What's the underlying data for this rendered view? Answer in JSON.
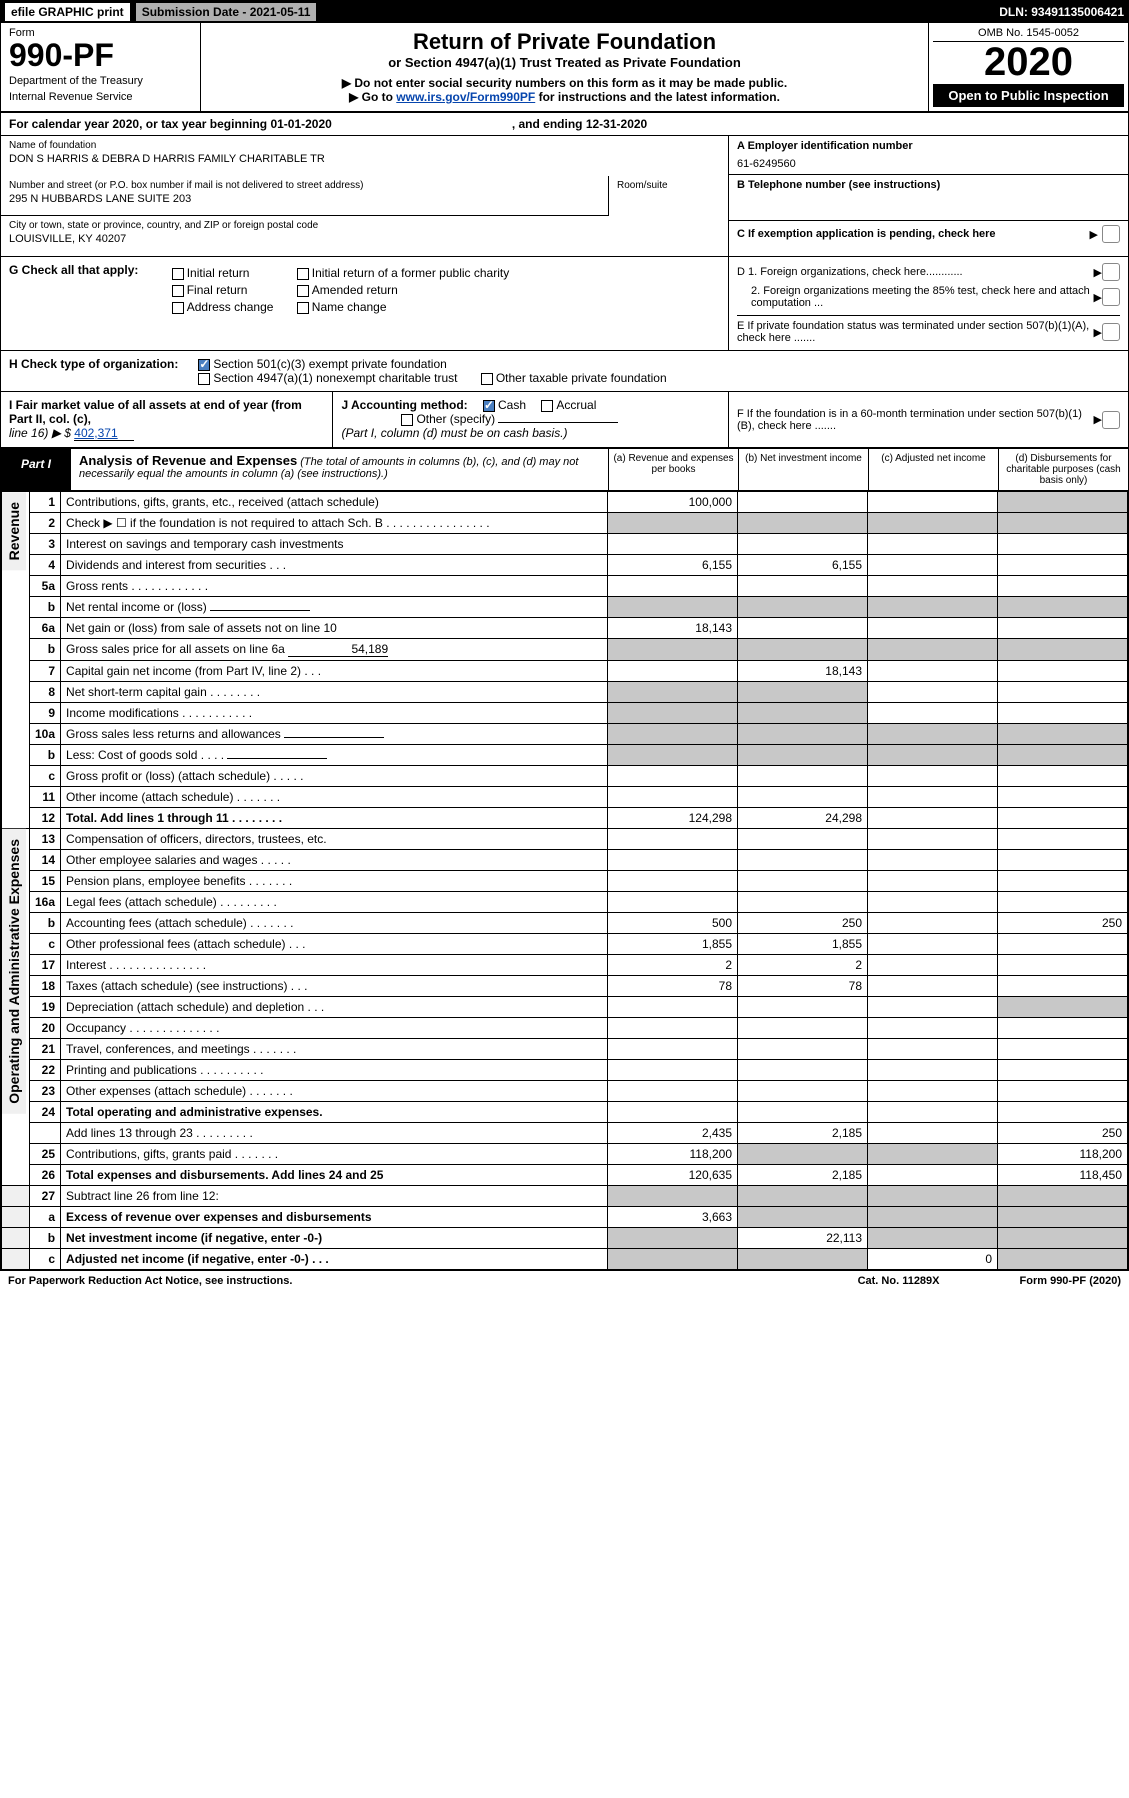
{
  "topbar": {
    "efile": "efile GRAPHIC print",
    "sub_label": "Submission Date - 2021-05-11",
    "dln": "DLN: 93491135006421"
  },
  "header": {
    "form": "Form",
    "num": "990-PF",
    "dept": "Department of the Treasury",
    "irs": "Internal Revenue Service",
    "title": "Return of Private Foundation",
    "sub": "or Section 4947(a)(1) Trust Treated as Private Foundation",
    "note1": "▶ Do not enter social security numbers on this form as it may be made public.",
    "note2_pre": "▶ Go to ",
    "note2_link": "www.irs.gov/Form990PF",
    "note2_post": " for instructions and the latest information.",
    "omb": "OMB No. 1545-0052",
    "year": "2020",
    "open": "Open to Public Inspection"
  },
  "cal": {
    "pre": "For calendar year 2020, or tax year beginning 01-01-2020",
    "post": ", and ending 12-31-2020"
  },
  "identity": {
    "name_lbl": "Name of foundation",
    "name": "DON S HARRIS & DEBRA D HARRIS FAMILY CHARITABLE TR",
    "addr_lbl": "Number and street (or P.O. box number if mail is not delivered to street address)",
    "addr": "295 N HUBBARDS LANE SUITE 203",
    "room_lbl": "Room/suite",
    "city_lbl": "City or town, state or province, country, and ZIP or foreign postal code",
    "city": "LOUISVILLE, KY  40207",
    "a_lbl": "A Employer identification number",
    "a_val": "61-6249560",
    "b_lbl": "B Telephone number (see instructions)",
    "c_lbl": "C If exemption application is pending, check here"
  },
  "g": {
    "lbl": "G Check all that apply:",
    "opts": [
      "Initial return",
      "Initial return of a former public charity",
      "Final return",
      "Amended return",
      "Address change",
      "Name change"
    ],
    "d1": "D 1. Foreign organizations, check here............",
    "d2": "2. Foreign organizations meeting the 85% test, check here and attach computation ...",
    "e": "E  If private foundation status was terminated under section 507(b)(1)(A), check here ......."
  },
  "h": {
    "lbl": "H Check type of organization:",
    "opt1": "Section 501(c)(3) exempt private foundation",
    "opt2": "Section 4947(a)(1) nonexempt charitable trust",
    "opt3": "Other taxable private foundation"
  },
  "i": {
    "lbl": "I Fair market value of all assets at end of year (from Part II, col. (c),",
    "line16": "line 16) ▶ $",
    "val": "402,371",
    "j_lbl": "J Accounting method:",
    "j_cash": "Cash",
    "j_accrual": "Accrual",
    "j_other": "Other (specify)",
    "j_note": "(Part I, column (d) must be on cash basis.)",
    "f": "F  If the foundation is in a 60-month termination under section 507(b)(1)(B), check here ......."
  },
  "part1": {
    "label": "Part I",
    "title": "Analysis of Revenue and Expenses",
    "note": "(The total of amounts in columns (b), (c), and (d) may not necessarily equal the amounts in column (a) (see instructions).)",
    "cols": {
      "a": "(a)   Revenue and expenses per books",
      "b": "(b)   Net investment income",
      "c": "(c)   Adjusted net income",
      "d": "(d)  Disbursements for charitable purposes (cash basis only)"
    }
  },
  "sections": {
    "revenue": "Revenue",
    "opexp": "Operating and Administrative Expenses"
  },
  "rows": [
    {
      "n": "1",
      "t": "Contributions, gifts, grants, etc., received (attach schedule)",
      "a": "100,000"
    },
    {
      "n": "2",
      "t": "Check ▶ ☐ if the foundation is not required to attach Sch. B   .   .   .   .   .   .   .   .   .   .   .   .   .   .   .   ."
    },
    {
      "n": "3",
      "t": "Interest on savings and temporary cash investments"
    },
    {
      "n": "4",
      "t": "Dividends and interest from securities    .    .    .",
      "a": "6,155",
      "b": "6,155"
    },
    {
      "n": "5a",
      "t": "Gross rents    .    .    .    .    .    .    .    .    .    .    .    ."
    },
    {
      "n": "b",
      "t": "Net rental income or (loss)",
      "inline": true
    },
    {
      "n": "6a",
      "t": "Net gain or (loss) from sale of assets not on line 10",
      "a": "18,143"
    },
    {
      "n": "b",
      "t": "Gross sales price for all assets on line 6a",
      "inline_val": "54,189"
    },
    {
      "n": "7",
      "t": "Capital gain net income (from Part IV, line 2)    .    .    .",
      "b": "18,143"
    },
    {
      "n": "8",
      "t": "Net short-term capital gain   .   .   .   .   .   .   .   ."
    },
    {
      "n": "9",
      "t": "Income modifications .   .   .   .   .   .   .   .   .   .   ."
    },
    {
      "n": "10a",
      "t": "Gross sales less returns and allowances",
      "inline": true
    },
    {
      "n": "b",
      "t": "Less: Cost of goods sold     .    .    .    .",
      "inline": true
    },
    {
      "n": "c",
      "t": "Gross profit or (loss) (attach schedule)    .    .    .    .    ."
    },
    {
      "n": "11",
      "t": "Other income (attach schedule)    .    .    .    .    .    .    ."
    },
    {
      "n": "12",
      "t": "Total. Add lines 1 through 11   .   .   .   .   .   .   .   .",
      "bold": true,
      "a": "124,298",
      "b": "24,298"
    }
  ],
  "oprows": [
    {
      "n": "13",
      "t": "Compensation of officers, directors, trustees, etc."
    },
    {
      "n": "14",
      "t": "Other employee salaries and wages    .    .    .    .    ."
    },
    {
      "n": "15",
      "t": "Pension plans, employee benefits  .   .   .   .   .   .   ."
    },
    {
      "n": "16a",
      "t": "Legal fees (attach schedule) .   .   .   .   .   .   .   .   ."
    },
    {
      "n": "b",
      "t": "Accounting fees (attach schedule) .   .   .   .   .   .   .",
      "a": "500",
      "b": "250",
      "d": "250"
    },
    {
      "n": "c",
      "t": "Other professional fees (attach schedule)    .    .    .",
      "a": "1,855",
      "b": "1,855"
    },
    {
      "n": "17",
      "t": "Interest  .   .   .   .   .   .   .   .   .   .   .   .   .   .   .",
      "a": "2",
      "b": "2"
    },
    {
      "n": "18",
      "t": "Taxes (attach schedule) (see instructions)     .    .    .",
      "a": "78",
      "b": "78"
    },
    {
      "n": "19",
      "t": "Depreciation (attach schedule) and depletion    .    .    ."
    },
    {
      "n": "20",
      "t": "Occupancy .   .   .   .   .   .   .   .   .   .   .   .   .   ."
    },
    {
      "n": "21",
      "t": "Travel, conferences, and meetings .   .   .   .   .   .   ."
    },
    {
      "n": "22",
      "t": "Printing and publications .   .   .   .   .   .   .   .   .   ."
    },
    {
      "n": "23",
      "t": "Other expenses (attach schedule)  .   .   .   .   .   .   ."
    },
    {
      "n": "24",
      "t": "Total operating and administrative expenses.",
      "bold": true
    },
    {
      "n": "",
      "t": "Add lines 13 through 23   .   .   .   .   .   .   .   .   .",
      "a": "2,435",
      "b": "2,185",
      "d": "250"
    },
    {
      "n": "25",
      "t": "Contributions, gifts, grants paid     .    .    .    .    .    .    .",
      "a": "118,200",
      "d": "118,200"
    },
    {
      "n": "26",
      "t": "Total expenses and disbursements. Add lines 24 and 25",
      "bold": true,
      "a": "120,635",
      "b": "2,185",
      "d": "118,450"
    }
  ],
  "botrows": [
    {
      "n": "27",
      "t": "Subtract line 26 from line 12:"
    },
    {
      "n": "a",
      "t": "Excess of revenue over expenses and disbursements",
      "bold": true,
      "a": "3,663"
    },
    {
      "n": "b",
      "t": "Net investment income (if negative, enter -0-)",
      "bold": true,
      "b": "22,113"
    },
    {
      "n": "c",
      "t": "Adjusted net income (if negative, enter -0-)    .    .    .",
      "bold": true,
      "c": "0"
    }
  ],
  "footer": {
    "l": "For Paperwork Reduction Act Notice, see instructions.",
    "m": "Cat. No. 11289X",
    "r": "Form 990-PF (2020)"
  },
  "shades": {
    "r1d": true,
    "r2": true,
    "r5b": true,
    "r6b_bcd": true,
    "r7a": true,
    "r8ab": true,
    "r9ab": true,
    "r10": true,
    "r19d": true,
    "r25bc": true,
    "r27": true,
    "r27a": true,
    "r27b": true,
    "r27c": true
  }
}
